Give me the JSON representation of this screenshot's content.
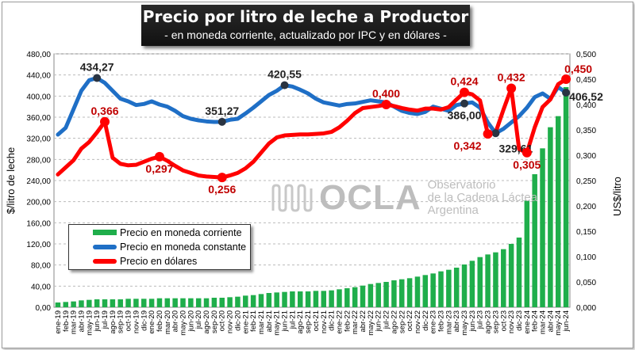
{
  "header": {
    "title": "Precio por litro de leche a Productor",
    "subtitle": "- en moneda corriente, actualizado por IPC y en dólares -"
  },
  "watermark": {
    "brand": "OCLA",
    "line1": "Observatorio",
    "line2": "de la Cadena Láctea",
    "line3": "Argentina"
  },
  "chart_data": {
    "type": "bar+line",
    "title": "Precio por litro de leche a Productor",
    "subtitle": "- en moneda corriente, actualizado por IPC y en dólares -",
    "ylabel": "$/litro de leche",
    "y2label": "US$/litro",
    "ylim": [
      0,
      480
    ],
    "y2lim": [
      0,
      0.5
    ],
    "yticks": [
      "0,00",
      "40,00",
      "80,00",
      "120,00",
      "160,00",
      "200,00",
      "240,00",
      "280,00",
      "320,00",
      "360,00",
      "400,00",
      "440,00",
      "480,00"
    ],
    "y2ticks": [
      "0,000",
      "0,050",
      "0,100",
      "0,150",
      "0,200",
      "0,250",
      "0,300",
      "0,350",
      "0,400",
      "0,450",
      "0,500"
    ],
    "grid": true,
    "legend_position": "bottom-left",
    "categories": [
      "ene-19",
      "feb-19",
      "mar-19",
      "abr-19",
      "may-19",
      "jun-19",
      "jul-19",
      "ago-19",
      "sep-19",
      "oct-19",
      "nov-19",
      "dic-19",
      "ene-20",
      "feb-20",
      "mar-20",
      "abr-20",
      "may-20",
      "jun-20",
      "jul-20",
      "ago-20",
      "sep-20",
      "oct-20",
      "nov-20",
      "dic-20",
      "ene-21",
      "feb-21",
      "mar-21",
      "abr-21",
      "may-21",
      "jun-21",
      "jul-21",
      "ago-21",
      "sep-21",
      "oct-21",
      "nov-21",
      "dic-21",
      "ene-22",
      "feb-22",
      "mar-22",
      "abr-22",
      "may-22",
      "jun-22",
      "jul-22",
      "ago-22",
      "sep-22",
      "oct-22",
      "nov-22",
      "dic-22",
      "ene-23",
      "feb-23",
      "mar-23",
      "abr-23",
      "may-23",
      "jun-23",
      "jul-23",
      "ago-23",
      "sep-23",
      "oct-23",
      "nov-23",
      "dic-23",
      "ene-24",
      "feb-24",
      "mar-24",
      "abr-24",
      "may-24",
      "jun-24"
    ],
    "series": [
      {
        "name": "Precio en moneda corriente",
        "type": "bar",
        "axis": "left",
        "color": "#1fae4b",
        "values": [
          9,
          10,
          11,
          13,
          14,
          15,
          15,
          15,
          15,
          16,
          16,
          16,
          16,
          17,
          17,
          17,
          17,
          17,
          17,
          17,
          18,
          18,
          19,
          20,
          22,
          23,
          25,
          27,
          28,
          29,
          30,
          30,
          30,
          31,
          31,
          32,
          34,
          36,
          38,
          41,
          44,
          46,
          48,
          51,
          53,
          55,
          58,
          61,
          64,
          68,
          71,
          75,
          81,
          88,
          95,
          100,
          104,
          110,
          120,
          132,
          202,
          252,
          301,
          341,
          362,
          417
        ]
      },
      {
        "name": "Precio en moneda constante",
        "type": "line",
        "axis": "left",
        "color": "#1f6fc6",
        "values": [
          327,
          340,
          375,
          410,
          430,
          434.27,
          425,
          410,
          395,
          390,
          383,
          385,
          390,
          384,
          380,
          372,
          362,
          357,
          354,
          352,
          351,
          351.27,
          355,
          357,
          367,
          378,
          390,
          402,
          410,
          420.55,
          418,
          412,
          405,
          395,
          388,
          385,
          382,
          385,
          386,
          389,
          392,
          390,
          388,
          380,
          372,
          368,
          366,
          370,
          380,
          376,
          372,
          383,
          386.0,
          388,
          378,
          350,
          329.61,
          338,
          350,
          362,
          378,
          398,
          405,
          395,
          417,
          406.52
        ]
      },
      {
        "name": "Precio en dólares",
        "type": "line",
        "axis": "right",
        "color": "#ff0000",
        "values": [
          0.262,
          0.276,
          0.29,
          0.313,
          0.326,
          0.345,
          0.366,
          0.295,
          0.283,
          0.28,
          0.281,
          0.287,
          0.293,
          0.297,
          0.289,
          0.279,
          0.27,
          0.265,
          0.26,
          0.258,
          0.257,
          0.256,
          0.26,
          0.265,
          0.274,
          0.287,
          0.305,
          0.323,
          0.335,
          0.339,
          0.34,
          0.341,
          0.341,
          0.342,
          0.343,
          0.346,
          0.355,
          0.368,
          0.383,
          0.393,
          0.395,
          0.397,
          0.4,
          0.397,
          0.393,
          0.39,
          0.388,
          0.392,
          0.392,
          0.39,
          0.395,
          0.41,
          0.424,
          0.42,
          0.408,
          0.342,
          0.345,
          0.39,
          0.432,
          0.312,
          0.305,
          0.355,
          0.395,
          0.41,
          0.44,
          0.45
        ]
      }
    ],
    "annotations": [
      {
        "series": 1,
        "index": 5,
        "text": "434,27",
        "placement": "above"
      },
      {
        "series": 1,
        "index": 21,
        "text": "351,27",
        "placement": "above"
      },
      {
        "series": 1,
        "index": 29,
        "text": "420,55",
        "placement": "above"
      },
      {
        "series": 1,
        "index": 52,
        "text": "386,00",
        "placement": "below"
      },
      {
        "series": 1,
        "index": 56,
        "text": "329,61",
        "placement": "below"
      },
      {
        "series": 1,
        "index": 65,
        "text": "406,52",
        "placement": "right"
      },
      {
        "series": 2,
        "index": 6,
        "text": "0,366",
        "placement": "above"
      },
      {
        "series": 2,
        "index": 13,
        "text": "0,297",
        "placement": "below"
      },
      {
        "series": 2,
        "index": 21,
        "text": "0,256",
        "placement": "below"
      },
      {
        "series": 2,
        "index": 42,
        "text": "0,400",
        "placement": "above"
      },
      {
        "series": 2,
        "index": 52,
        "text": "0,424",
        "placement": "above"
      },
      {
        "series": 2,
        "index": 55,
        "text": "0,342",
        "placement": "below"
      },
      {
        "series": 2,
        "index": 58,
        "text": "0,432",
        "placement": "above"
      },
      {
        "series": 2,
        "index": 60,
        "text": "0,305",
        "placement": "below"
      },
      {
        "series": 2,
        "index": 65,
        "text": "0,450",
        "placement": "above-right"
      }
    ]
  }
}
